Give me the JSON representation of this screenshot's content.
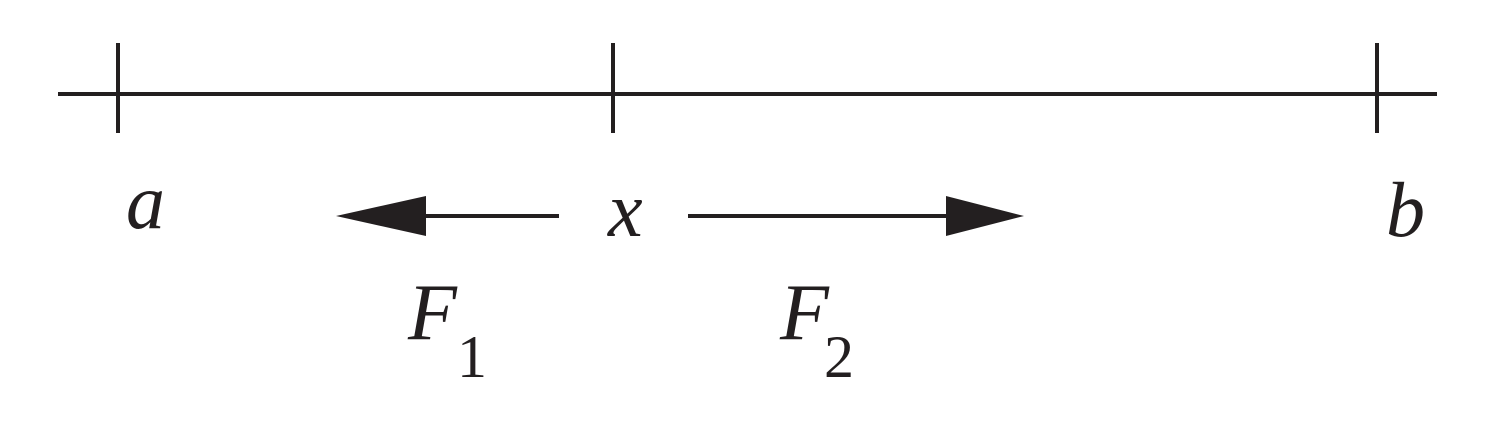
{
  "diagram": {
    "points": [
      {
        "id": "a",
        "label": "a"
      },
      {
        "id": "x",
        "label": "x"
      },
      {
        "id": "b",
        "label": "b"
      }
    ],
    "forces": [
      {
        "id": "F1",
        "symbol": "F",
        "subscript": "1",
        "direction": "left"
      },
      {
        "id": "F2",
        "symbol": "F",
        "subscript": "2",
        "direction": "right"
      }
    ],
    "colors": {
      "stroke": "#231f20",
      "background": "#ffffff"
    }
  }
}
